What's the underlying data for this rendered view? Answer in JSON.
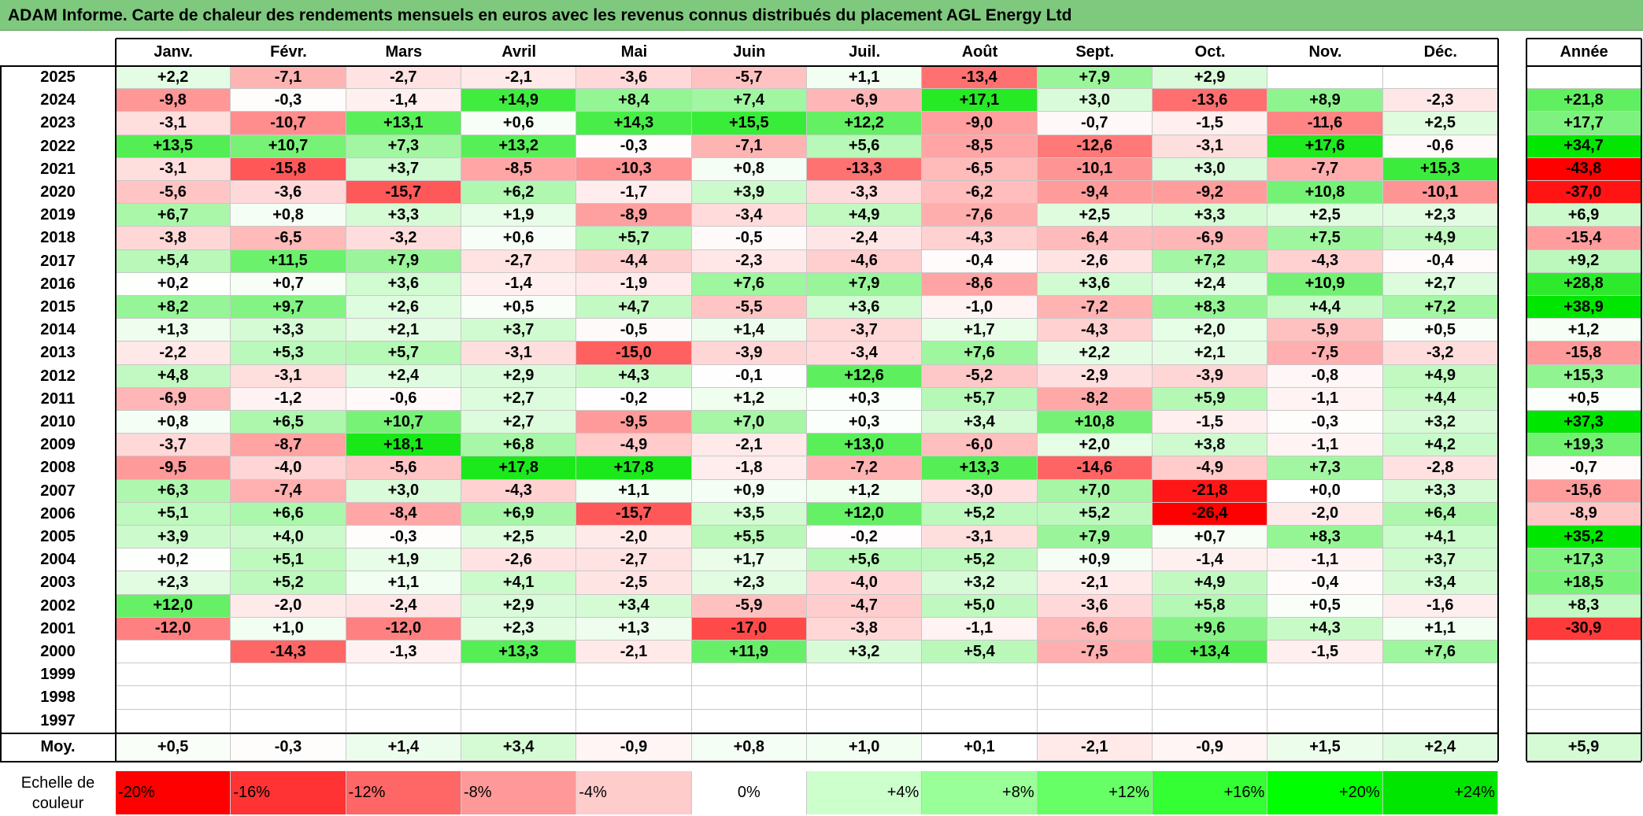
{
  "title": "ADAM Informe. Carte de chaleur des rendements mensuels en euros avec les revenus connus distribués du placement AGL Energy Ltd",
  "chart_data": {
    "type": "heatmap",
    "title": "ADAM Informe. Carte de chaleur des rendements mensuels en euros avec les revenus connus distribués du placement AGL Energy Ltd",
    "columns": [
      "Janv.",
      "Févr.",
      "Mars",
      "Avril",
      "Mai",
      "Juin",
      "Juil.",
      "Août",
      "Sept.",
      "Oct.",
      "Nov.",
      "Déc."
    ],
    "year_column_label": "Année",
    "rows": [
      {
        "year": "2025",
        "values": [
          "+2,2",
          "-7,1",
          "-2,7",
          "-2,1",
          "-3,6",
          "-5,7",
          "+1,1",
          "-13,4",
          "+7,9",
          "+2,9",
          "",
          ""
        ],
        "annual": ""
      },
      {
        "year": "2024",
        "values": [
          "-9,8",
          "-0,3",
          "-1,4",
          "+14,9",
          "+8,4",
          "+7,4",
          "-6,9",
          "+17,1",
          "+3,0",
          "-13,6",
          "+8,9",
          "-2,3"
        ],
        "annual": "+21,8"
      },
      {
        "year": "2023",
        "values": [
          "-3,1",
          "-10,7",
          "+13,1",
          "+0,6",
          "+14,3",
          "+15,5",
          "+12,2",
          "-9,0",
          "-0,7",
          "-1,5",
          "-11,6",
          "+2,5"
        ],
        "annual": "+17,7"
      },
      {
        "year": "2022",
        "values": [
          "+13,5",
          "+10,7",
          "+7,3",
          "+13,2",
          "-0,3",
          "-7,1",
          "+5,6",
          "-8,5",
          "-12,6",
          "-3,1",
          "+17,6",
          "-0,6"
        ],
        "annual": "+34,7"
      },
      {
        "year": "2021",
        "values": [
          "-3,1",
          "-15,8",
          "+3,7",
          "-8,5",
          "-10,3",
          "+0,8",
          "-13,3",
          "-6,5",
          "-10,1",
          "+3,0",
          "-7,7",
          "+15,3"
        ],
        "annual": "-43,8"
      },
      {
        "year": "2020",
        "values": [
          "-5,6",
          "-3,6",
          "-15,7",
          "+6,2",
          "-1,7",
          "+3,9",
          "-3,3",
          "-6,2",
          "-9,4",
          "-9,2",
          "+10,8",
          "-10,1"
        ],
        "annual": "-37,0"
      },
      {
        "year": "2019",
        "values": [
          "+6,7",
          "+0,8",
          "+3,3",
          "+1,9",
          "-8,9",
          "-3,4",
          "+4,9",
          "-7,6",
          "+2,5",
          "+3,3",
          "+2,5",
          "+2,3"
        ],
        "annual": "+6,9"
      },
      {
        "year": "2018",
        "values": [
          "-3,8",
          "-6,5",
          "-3,2",
          "+0,6",
          "+5,7",
          "-0,5",
          "-2,4",
          "-4,3",
          "-6,4",
          "-6,9",
          "+7,5",
          "+4,9"
        ],
        "annual": "-15,4"
      },
      {
        "year": "2017",
        "values": [
          "+5,4",
          "+11,5",
          "+7,9",
          "-2,7",
          "-4,4",
          "-2,3",
          "-4,6",
          "-0,4",
          "-2,6",
          "+7,2",
          "-4,3",
          "-0,4"
        ],
        "annual": "+9,2"
      },
      {
        "year": "2016",
        "values": [
          "+0,2",
          "+0,7",
          "+3,6",
          "-1,4",
          "-1,9",
          "+7,6",
          "+7,9",
          "-8,6",
          "+3,6",
          "+2,4",
          "+10,9",
          "+2,7"
        ],
        "annual": "+28,8"
      },
      {
        "year": "2015",
        "values": [
          "+8,2",
          "+9,7",
          "+2,6",
          "+0,5",
          "+4,7",
          "-5,5",
          "+3,6",
          "-1,0",
          "-7,2",
          "+8,3",
          "+4,4",
          "+7,2"
        ],
        "annual": "+38,9"
      },
      {
        "year": "2014",
        "values": [
          "+1,3",
          "+3,3",
          "+2,1",
          "+3,7",
          "-0,5",
          "+1,4",
          "-3,7",
          "+1,7",
          "-4,3",
          "+2,0",
          "-5,9",
          "+0,5"
        ],
        "annual": "+1,2"
      },
      {
        "year": "2013",
        "values": [
          "-2,2",
          "+5,3",
          "+5,7",
          "-3,1",
          "-15,0",
          "-3,9",
          "-3,4",
          "+7,6",
          "+2,2",
          "+2,1",
          "-7,5",
          "-3,2"
        ],
        "annual": "-15,8"
      },
      {
        "year": "2012",
        "values": [
          "+4,8",
          "-3,1",
          "+2,4",
          "+2,9",
          "+4,3",
          "-0,1",
          "+12,6",
          "-5,2",
          "-2,9",
          "-3,9",
          "-0,8",
          "+4,9"
        ],
        "annual": "+15,3"
      },
      {
        "year": "2011",
        "values": [
          "-6,9",
          "-1,2",
          "-0,6",
          "+2,7",
          "-0,2",
          "+1,2",
          "+0,3",
          "+5,7",
          "-8,2",
          "+5,9",
          "-1,1",
          "+4,4"
        ],
        "annual": "+0,5"
      },
      {
        "year": "2010",
        "values": [
          "+0,8",
          "+6,5",
          "+10,7",
          "+2,7",
          "-9,5",
          "+7,0",
          "+0,3",
          "+3,4",
          "+10,8",
          "-1,5",
          "-0,3",
          "+3,2"
        ],
        "annual": "+37,3"
      },
      {
        "year": "2009",
        "values": [
          "-3,7",
          "-8,7",
          "+18,1",
          "+6,8",
          "-4,9",
          "-2,1",
          "+13,0",
          "-6,0",
          "+2,0",
          "+3,8",
          "-1,1",
          "+4,2"
        ],
        "annual": "+19,3"
      },
      {
        "year": "2008",
        "values": [
          "-9,5",
          "-4,0",
          "-5,6",
          "+17,8",
          "+17,8",
          "-1,8",
          "-7,2",
          "+13,3",
          "-14,6",
          "-4,9",
          "+7,3",
          "-2,8"
        ],
        "annual": "-0,7"
      },
      {
        "year": "2007",
        "values": [
          "+6,3",
          "-7,4",
          "+3,0",
          "-4,3",
          "+1,1",
          "+0,9",
          "+1,2",
          "-3,0",
          "+7,0",
          "-21,8",
          "+0,0",
          "+3,3"
        ],
        "annual": "-15,6"
      },
      {
        "year": "2006",
        "values": [
          "+5,1",
          "+6,6",
          "-8,4",
          "+6,9",
          "-15,7",
          "+3,5",
          "+12,0",
          "+5,2",
          "+5,2",
          "-26,4",
          "-2,0",
          "+6,4"
        ],
        "annual": "-8,9"
      },
      {
        "year": "2005",
        "values": [
          "+3,9",
          "+4,0",
          "-0,3",
          "+2,5",
          "-2,0",
          "+5,5",
          "-0,2",
          "-3,1",
          "+7,9",
          "+0,7",
          "+8,3",
          "+4,1"
        ],
        "annual": "+35,2"
      },
      {
        "year": "2004",
        "values": [
          "+0,2",
          "+5,1",
          "+1,9",
          "-2,6",
          "-2,7",
          "+1,7",
          "+5,6",
          "+5,2",
          "+0,9",
          "-1,4",
          "-1,1",
          "+3,7"
        ],
        "annual": "+17,3"
      },
      {
        "year": "2003",
        "values": [
          "+2,3",
          "+5,2",
          "+1,1",
          "+4,1",
          "-2,5",
          "+2,3",
          "-4,0",
          "+3,2",
          "-2,1",
          "+4,9",
          "-0,4",
          "+3,4"
        ],
        "annual": "+18,5"
      },
      {
        "year": "2002",
        "values": [
          "+12,0",
          "-2,0",
          "-2,4",
          "+2,9",
          "+3,4",
          "-5,9",
          "-4,7",
          "+5,0",
          "-3,6",
          "+5,8",
          "+0,5",
          "-1,6"
        ],
        "annual": "+8,3"
      },
      {
        "year": "2001",
        "values": [
          "-12,0",
          "+1,0",
          "-12,0",
          "+2,3",
          "+1,3",
          "-17,0",
          "-3,8",
          "-1,1",
          "-6,6",
          "+9,6",
          "+4,3",
          "+1,1"
        ],
        "annual": "-30,9"
      },
      {
        "year": "2000",
        "values": [
          "",
          "-14,3",
          "-1,3",
          "+13,3",
          "-2,1",
          "+11,9",
          "+3,2",
          "+5,4",
          "-7,5",
          "+13,4",
          "-1,5",
          "+7,6"
        ],
        "annual": ""
      },
      {
        "year": "1999",
        "values": [
          "",
          "",
          "",
          "",
          "",
          "",
          "",
          "",
          "",
          "",
          "",
          ""
        ],
        "annual": ""
      },
      {
        "year": "1998",
        "values": [
          "",
          "",
          "",
          "",
          "",
          "",
          "",
          "",
          "",
          "",
          "",
          ""
        ],
        "annual": ""
      },
      {
        "year": "1997",
        "values": [
          "",
          "",
          "",
          "",
          "",
          "",
          "",
          "",
          "",
          "",
          "",
          ""
        ],
        "annual": ""
      }
    ],
    "average": {
      "label": "Moy.",
      "values": [
        "+0,5",
        "-0,3",
        "+1,4",
        "+3,4",
        "-0,9",
        "+0,8",
        "+1,0",
        "+0,1",
        "-2,1",
        "-0,9",
        "+1,5",
        "+2,4"
      ],
      "annual": "+5,9"
    },
    "scale": {
      "label_line1": "Echelle de",
      "label_line2": "couleur",
      "steps": [
        {
          "label": "-20%",
          "value": -20,
          "color": "#ff0000",
          "align": "left"
        },
        {
          "label": "-16%",
          "value": -16,
          "color": "#ff3333",
          "align": "left"
        },
        {
          "label": "-12%",
          "value": -12,
          "color": "#ff6666",
          "align": "left"
        },
        {
          "label": "-8%",
          "value": -8,
          "color": "#ff9999",
          "align": "left"
        },
        {
          "label": "-4%",
          "value": -4,
          "color": "#ffcccc",
          "align": "left"
        },
        {
          "label": "0%",
          "value": 0,
          "color": "#ffffff",
          "align": "center"
        },
        {
          "label": "+4%",
          "value": 4,
          "color": "#ccffcc",
          "align": "right"
        },
        {
          "label": "+8%",
          "value": 8,
          "color": "#99ff99",
          "align": "right"
        },
        {
          "label": "+12%",
          "value": 12,
          "color": "#66ff66",
          "align": "right"
        },
        {
          "label": "+16%",
          "value": 16,
          "color": "#33ff33",
          "align": "right"
        },
        {
          "label": "+20%",
          "value": 20,
          "color": "#00ff00",
          "align": "right"
        },
        {
          "label": "+24%",
          "value": 24,
          "color": "#00e600",
          "align": "right"
        }
      ]
    }
  }
}
